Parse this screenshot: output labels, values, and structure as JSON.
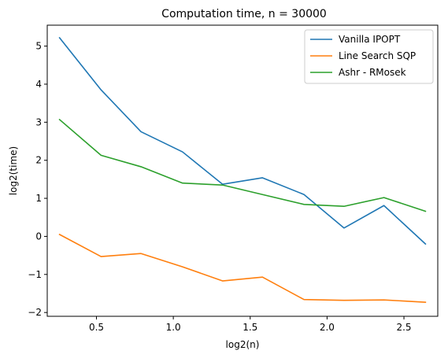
{
  "chart_data": {
    "type": "line",
    "title": "Computation time, n = 30000",
    "xlabel": "log2(n)",
    "ylabel": "log2(time)",
    "xlim": [
      0.18,
      2.72
    ],
    "ylim": [
      -2.1,
      5.55
    ],
    "xticks": [
      {
        "value": 0.5,
        "label": "0.5"
      },
      {
        "value": 1.0,
        "label": "1.0"
      },
      {
        "value": 1.5,
        "label": "1.5"
      },
      {
        "value": 2.0,
        "label": "2.0"
      },
      {
        "value": 2.5,
        "label": "2.5"
      }
    ],
    "yticks": [
      {
        "value": -2,
        "label": "−2"
      },
      {
        "value": -1,
        "label": "−1"
      },
      {
        "value": 0,
        "label": "0"
      },
      {
        "value": 1,
        "label": "1"
      },
      {
        "value": 2,
        "label": "2"
      },
      {
        "value": 3,
        "label": "3"
      },
      {
        "value": 4,
        "label": "4"
      },
      {
        "value": 5,
        "label": "5"
      }
    ],
    "grid": false,
    "legend_position": "top-right",
    "x": [
      0.26,
      0.53,
      0.79,
      1.06,
      1.32,
      1.58,
      1.85,
      2.11,
      2.37,
      2.64
    ],
    "series": [
      {
        "name": "Vanilla IPOPT",
        "color": "#1f77b4",
        "values": [
          5.22,
          3.85,
          2.75,
          2.22,
          1.37,
          1.54,
          1.1,
          0.22,
          0.81,
          -0.2
        ]
      },
      {
        "name": "Line Search SQP",
        "color": "#ff7f0e",
        "values": [
          0.05,
          -0.53,
          -0.45,
          -0.8,
          -1.17,
          -1.07,
          -1.66,
          -1.68,
          -1.67,
          -1.73
        ]
      },
      {
        "name": "Ashr - RMosek",
        "color": "#2ca02c",
        "values": [
          3.07,
          2.13,
          1.83,
          1.4,
          1.35,
          1.1,
          0.84,
          0.79,
          1.02,
          0.66
        ]
      }
    ]
  }
}
